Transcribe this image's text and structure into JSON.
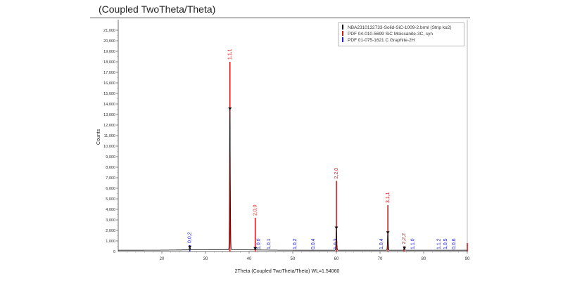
{
  "header": {
    "title": "(Coupled TwoTheta/Theta)"
  },
  "colors": {
    "measured": "#111111",
    "moissanite": "#d01818",
    "graphite": "#1a1ad8"
  },
  "chart_data": {
    "type": "line",
    "title": "(Coupled TwoTheta/Theta)",
    "xlabel": "2Theta (Coupled TwoTheta/Theta) WL=1.54060",
    "ylabel": "Counts",
    "xlim": [
      10,
      90
    ],
    "ylim": [
      0,
      22000
    ],
    "x_ticks": [
      20,
      30,
      40,
      50,
      60,
      70,
      80,
      90
    ],
    "y_ticks": [
      "1,000",
      "2,000",
      "3,000",
      "4,000",
      "5,000",
      "6,000",
      "7,000",
      "8,000",
      "9,000",
      "10,000",
      "11,000",
      "12,000",
      "13,000",
      "14,000",
      "15,000",
      "16,000",
      "17,000",
      "18,000",
      "19,000",
      "20,000",
      "21,000"
    ],
    "y_zero_label": "0",
    "legend_position": "top-right",
    "series": [
      {
        "name": "NBA2310132733-Solid-SiC-1009-2.brml (Strip kα2)",
        "color": "#111111",
        "type": "pattern",
        "peaks": [
          [
            26.4,
            380
          ],
          [
            35.6,
            13500
          ],
          [
            41.4,
            250
          ],
          [
            60.0,
            2200
          ],
          [
            71.8,
            1750
          ],
          [
            75.6,
            280
          ]
        ]
      },
      {
        "name": "PDF 04-010-5699 SiC Moissanite-3C, syn",
        "color": "#d01818",
        "type": "sticks",
        "sticks": [
          {
            "x": 35.6,
            "y": 18000,
            "label": "1,1,1"
          },
          {
            "x": 41.4,
            "y": 3200,
            "label": "2,0,0"
          },
          {
            "x": 60.0,
            "y": 6700,
            "label": "2,2,0"
          },
          {
            "x": 71.8,
            "y": 4400,
            "label": "3,1,1"
          },
          {
            "x": 75.5,
            "y": 500,
            "label": "2,2,2"
          },
          {
            "x": 90.0,
            "y": 800,
            "label": ""
          }
        ]
      },
      {
        "name": "PDF 01-075-1621 C Graphite-2H",
        "color": "#1a1ad8",
        "type": "sticks",
        "sticks": [
          {
            "x": 26.4,
            "y": 600,
            "label": "0,0,2"
          },
          {
            "x": 42.2,
            "y": 0,
            "label": "1,0,0"
          },
          {
            "x": 44.5,
            "y": 0,
            "label": "1,0,1"
          },
          {
            "x": 50.5,
            "y": 0,
            "label": "1,0,2"
          },
          {
            "x": 54.7,
            "y": 0,
            "label": "0,0,4"
          },
          {
            "x": 59.8,
            "y": 0,
            "label": "1,0,3"
          },
          {
            "x": 70.3,
            "y": 0,
            "label": "1,0,4"
          },
          {
            "x": 77.5,
            "y": 0,
            "label": "1,1,0"
          },
          {
            "x": 83.5,
            "y": 0,
            "label": "1,1,2"
          },
          {
            "x": 85.0,
            "y": 0,
            "label": "1,0,5"
          },
          {
            "x": 86.9,
            "y": 0,
            "label": "0,0,6"
          }
        ]
      }
    ]
  }
}
